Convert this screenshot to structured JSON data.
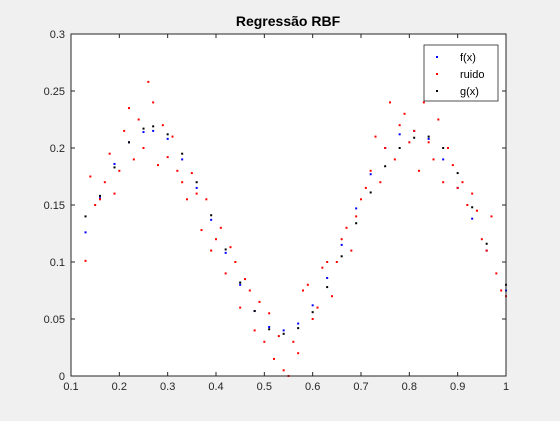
{
  "chart_data": {
    "type": "scatter",
    "title": "Regressão RBF",
    "xlabel": "",
    "ylabel": "",
    "xlim": [
      0.1,
      1.0
    ],
    "ylim": [
      0,
      0.3
    ],
    "xticks": [
      "0.1",
      "0.2",
      "0.3",
      "0.4",
      "0.5",
      "0.6",
      "0.7",
      "0.8",
      "0.9",
      "1"
    ],
    "yticks": [
      "0",
      "0.05",
      "0.1",
      "0.15",
      "0.2",
      "0.25",
      "0.3"
    ],
    "grid": false,
    "legend_position": "top-right",
    "series": [
      {
        "name": "f(x)",
        "color": "#0000ff",
        "x": [
          0.13,
          0.16,
          0.19,
          0.22,
          0.25,
          0.27,
          0.3,
          0.33,
          0.36,
          0.39,
          0.42,
          0.45,
          0.48,
          0.51,
          0.54,
          0.57,
          0.6,
          0.63,
          0.66,
          0.69,
          0.72,
          0.75,
          0.78,
          0.81,
          0.84,
          0.87,
          0.9,
          0.93,
          0.96,
          1.0
        ],
        "y": [
          0.126,
          0.156,
          0.186,
          0.205,
          0.214,
          0.215,
          0.208,
          0.19,
          0.165,
          0.137,
          0.108,
          0.08,
          0.057,
          0.043,
          0.04,
          0.046,
          0.062,
          0.086,
          0.115,
          0.147,
          0.177,
          0.2,
          0.212,
          0.215,
          0.208,
          0.19,
          0.165,
          0.138,
          0.11,
          0.075
        ]
      },
      {
        "name": "ruido",
        "color": "#ff0000",
        "x": [
          0.13,
          0.14,
          0.15,
          0.16,
          0.17,
          0.18,
          0.19,
          0.2,
          0.21,
          0.22,
          0.23,
          0.24,
          0.25,
          0.26,
          0.27,
          0.28,
          0.29,
          0.3,
          0.31,
          0.32,
          0.33,
          0.34,
          0.35,
          0.36,
          0.37,
          0.38,
          0.39,
          0.4,
          0.41,
          0.42,
          0.43,
          0.44,
          0.45,
          0.46,
          0.47,
          0.48,
          0.49,
          0.5,
          0.51,
          0.52,
          0.53,
          0.54,
          0.55,
          0.56,
          0.57,
          0.58,
          0.59,
          0.6,
          0.61,
          0.62,
          0.63,
          0.64,
          0.65,
          0.66,
          0.67,
          0.68,
          0.69,
          0.7,
          0.71,
          0.72,
          0.73,
          0.74,
          0.75,
          0.76,
          0.77,
          0.78,
          0.79,
          0.8,
          0.81,
          0.82,
          0.83,
          0.84,
          0.85,
          0.86,
          0.87,
          0.88,
          0.89,
          0.9,
          0.91,
          0.92,
          0.93,
          0.94,
          0.95,
          0.96,
          0.97,
          0.98,
          0.99,
          1.0
        ],
        "y": [
          0.101,
          0.175,
          0.15,
          0.155,
          0.17,
          0.195,
          0.16,
          0.18,
          0.215,
          0.235,
          0.19,
          0.225,
          0.2,
          0.258,
          0.24,
          0.185,
          0.22,
          0.192,
          0.21,
          0.18,
          0.17,
          0.155,
          0.178,
          0.16,
          0.128,
          0.155,
          0.11,
          0.12,
          0.13,
          0.09,
          0.113,
          0.1,
          0.06,
          0.085,
          0.075,
          0.04,
          0.065,
          0.03,
          0.055,
          0.015,
          0.035,
          0.005,
          0.0,
          0.03,
          0.02,
          0.075,
          0.08,
          0.05,
          0.06,
          0.095,
          0.1,
          0.07,
          0.1,
          0.12,
          0.13,
          0.11,
          0.14,
          0.155,
          0.165,
          0.18,
          0.21,
          0.17,
          0.2,
          0.24,
          0.19,
          0.22,
          0.23,
          0.205,
          0.215,
          0.18,
          0.24,
          0.205,
          0.19,
          0.225,
          0.17,
          0.2,
          0.185,
          0.165,
          0.17,
          0.15,
          0.16,
          0.145,
          0.12,
          0.11,
          0.14,
          0.09,
          0.075,
          0.07
        ]
      },
      {
        "name": "g(x)",
        "color": "#000000",
        "x": [
          0.13,
          0.16,
          0.19,
          0.22,
          0.25,
          0.27,
          0.3,
          0.33,
          0.36,
          0.39,
          0.42,
          0.45,
          0.48,
          0.51,
          0.54,
          0.57,
          0.6,
          0.63,
          0.66,
          0.69,
          0.72,
          0.75,
          0.78,
          0.81,
          0.84,
          0.87,
          0.9,
          0.93,
          0.96,
          1.0
        ],
        "y": [
          0.14,
          0.158,
          0.183,
          0.205,
          0.217,
          0.219,
          0.212,
          0.195,
          0.17,
          0.141,
          0.111,
          0.082,
          0.057,
          0.041,
          0.037,
          0.042,
          0.056,
          0.078,
          0.105,
          0.134,
          0.161,
          0.184,
          0.2,
          0.209,
          0.21,
          0.2,
          0.178,
          0.148,
          0.116,
          0.08
        ]
      }
    ]
  }
}
